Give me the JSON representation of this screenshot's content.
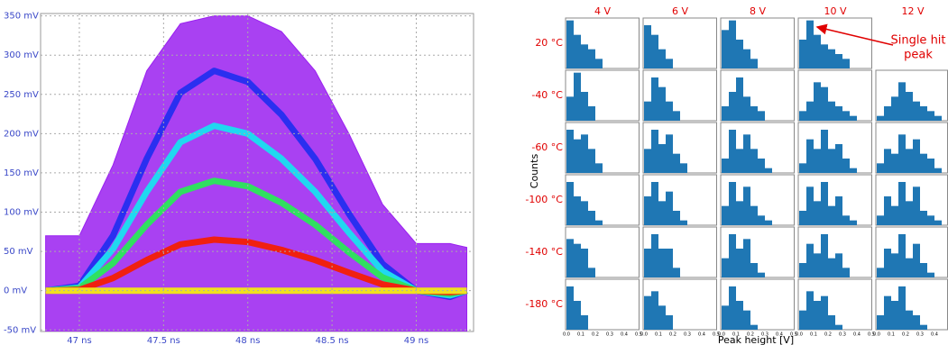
{
  "chart_data": [
    {
      "type": "line",
      "x": [
        46.8,
        47.0,
        47.2,
        47.4,
        47.6,
        47.8,
        48.0,
        48.2,
        48.4,
        48.6,
        48.8,
        49.0,
        49.2,
        49.3
      ],
      "series": [
        {
          "color": "#9a20f0",
          "area": true,
          "values": [
            70,
            70,
            160,
            280,
            340,
            350,
            350,
            330,
            280,
            200,
            110,
            60,
            60,
            55
          ]
        },
        {
          "color": "#2a2ff0",
          "values": [
            0,
            6,
            70,
            168,
            252,
            280,
            266,
            224,
            168,
            98,
            34,
            0,
            -8,
            0
          ]
        },
        {
          "color": "#20d8f0",
          "values": [
            0,
            4,
            53,
            126,
            189,
            210,
            200,
            168,
            126,
            74,
            25,
            0,
            -6,
            0
          ]
        },
        {
          "color": "#30e060",
          "values": [
            0,
            3,
            35,
            84,
            126,
            140,
            133,
            112,
            84,
            49,
            17,
            0,
            -4,
            0
          ]
        },
        {
          "color": "#f02010",
          "values": [
            0,
            1,
            16,
            39,
            59,
            65,
            62,
            52,
            39,
            23,
            8,
            0,
            -2,
            0
          ]
        },
        {
          "color": "#f0e020",
          "values": [
            0,
            0,
            0,
            0,
            0,
            0,
            0,
            0,
            0,
            0,
            0,
            0,
            0,
            0
          ]
        }
      ],
      "xlim": [
        46.77,
        49.34
      ],
      "ylim": [
        -52,
        353
      ],
      "grid": true,
      "xticks": [
        {
          "value": 47,
          "label": "47 ns"
        },
        {
          "value": 47.5,
          "label": "47.5 ns"
        },
        {
          "value": 48,
          "label": "48 ns"
        },
        {
          "value": 48.5,
          "label": "48.5 ns"
        },
        {
          "value": 49,
          "label": "49 ns"
        }
      ],
      "yticks": [
        {
          "value": -50,
          "label": "-50 mV"
        },
        {
          "value": 0,
          "label": "0 mV"
        },
        {
          "value": 50,
          "label": "50 mV"
        },
        {
          "value": 100,
          "label": "100 mV"
        },
        {
          "value": 150,
          "label": "150 mV"
        },
        {
          "value": 200,
          "label": "200 mV"
        },
        {
          "value": 250,
          "label": "250 mV"
        },
        {
          "value": 300,
          "label": "300 mV"
        },
        {
          "value": 350,
          "label": "350 mV"
        }
      ]
    },
    {
      "type": "histogram-grid",
      "x_label": "Peak height [V]",
      "y_label": "Counts",
      "columns": [
        "4 V",
        "6 V",
        "8 V",
        "10 V",
        "12 V"
      ],
      "rows": [
        "20 °C",
        "-40 °C",
        "-60 °C",
        "-100 °C",
        "-140 °C",
        "-180 °C"
      ],
      "bins": [
        0,
        0.05,
        0.1,
        0.15,
        0.2,
        0.25,
        0.3,
        0.35,
        0.4,
        0.45,
        0.5
      ],
      "xlim": [
        0,
        0.5
      ],
      "ylim": [
        0,
        1.05
      ],
      "color": "#1f77b4",
      "xticks": [
        {
          "value": 0,
          "label": "0.0"
        },
        {
          "value": 0.1,
          "label": "0.1"
        },
        {
          "value": 0.2,
          "label": "0.2"
        },
        {
          "value": 0.3,
          "label": "0.3"
        },
        {
          "value": 0.4,
          "label": "0.4"
        },
        {
          "value": 0.5,
          "label": "0.5"
        }
      ],
      "annotation": [
        "Single hit",
        "peak"
      ],
      "counts": [
        [
          [
            1,
            0.7,
            0.5,
            0.4,
            0.2,
            0,
            0,
            0,
            0,
            0
          ],
          [
            0.9,
            0.7,
            0.4,
            0.2,
            0,
            0,
            0,
            0,
            0,
            0
          ],
          [
            0.8,
            1,
            0.6,
            0.4,
            0.2,
            0,
            0,
            0,
            0,
            0
          ],
          [
            0.6,
            1,
            0.7,
            0.5,
            0.4,
            0.3,
            0.2,
            0,
            0,
            0
          ],
          null
        ],
        [
          [
            0.5,
            1,
            0.6,
            0.3,
            0,
            0,
            0,
            0,
            0,
            0
          ],
          [
            0.4,
            0.9,
            0.7,
            0.4,
            0.2,
            0,
            0,
            0,
            0,
            0
          ],
          [
            0.3,
            0.6,
            0.9,
            0.5,
            0.3,
            0.2,
            0,
            0,
            0,
            0
          ],
          [
            0.2,
            0.4,
            0.8,
            0.7,
            0.4,
            0.3,
            0.2,
            0.1,
            0,
            0
          ],
          [
            0.1,
            0.3,
            0.5,
            0.8,
            0.6,
            0.4,
            0.3,
            0.2,
            0.1,
            0
          ]
        ],
        [
          [
            0.9,
            0.7,
            0.8,
            0.5,
            0.2,
            0,
            0,
            0,
            0,
            0
          ],
          [
            0.5,
            0.9,
            0.6,
            0.8,
            0.4,
            0.2,
            0,
            0,
            0,
            0
          ],
          [
            0.3,
            0.9,
            0.5,
            0.8,
            0.5,
            0.3,
            0.1,
            0,
            0,
            0
          ],
          [
            0.2,
            0.7,
            0.5,
            0.9,
            0.5,
            0.6,
            0.3,
            0.1,
            0,
            0
          ],
          [
            0.2,
            0.5,
            0.4,
            0.8,
            0.5,
            0.7,
            0.4,
            0.3,
            0.1,
            0
          ]
        ],
        [
          [
            0.9,
            0.6,
            0.5,
            0.3,
            0.1,
            0,
            0,
            0,
            0,
            0
          ],
          [
            0.6,
            0.9,
            0.5,
            0.7,
            0.3,
            0.1,
            0,
            0,
            0,
            0
          ],
          [
            0.4,
            0.9,
            0.5,
            0.8,
            0.4,
            0.2,
            0.1,
            0,
            0,
            0
          ],
          [
            0.3,
            0.8,
            0.5,
            0.9,
            0.4,
            0.6,
            0.2,
            0.1,
            0,
            0
          ],
          [
            0.2,
            0.6,
            0.4,
            0.9,
            0.5,
            0.8,
            0.3,
            0.2,
            0.1,
            0
          ]
        ],
        [
          [
            0.8,
            0.7,
            0.6,
            0.2,
            0,
            0,
            0,
            0,
            0,
            0
          ],
          [
            0.6,
            0.9,
            0.6,
            0.6,
            0.2,
            0,
            0,
            0,
            0,
            0
          ],
          [
            0.4,
            0.9,
            0.6,
            0.8,
            0.3,
            0.1,
            0,
            0,
            0,
            0
          ],
          [
            0.3,
            0.7,
            0.5,
            0.9,
            0.4,
            0.5,
            0.2,
            0,
            0,
            0
          ],
          [
            0.2,
            0.6,
            0.5,
            0.9,
            0.4,
            0.7,
            0.3,
            0.1,
            0,
            0
          ]
        ],
        [
          [
            0.9,
            0.6,
            0.3,
            0,
            0,
            0,
            0,
            0,
            0,
            0
          ],
          [
            0.7,
            0.8,
            0.5,
            0.3,
            0,
            0,
            0,
            0,
            0,
            0
          ],
          [
            0.5,
            0.9,
            0.6,
            0.4,
            0.1,
            0,
            0,
            0,
            0,
            0
          ],
          [
            0.4,
            0.8,
            0.6,
            0.7,
            0.3,
            0.1,
            0,
            0,
            0,
            0
          ],
          [
            0.3,
            0.7,
            0.6,
            0.9,
            0.4,
            0.3,
            0.1,
            0,
            0,
            0
          ]
        ]
      ]
    }
  ]
}
